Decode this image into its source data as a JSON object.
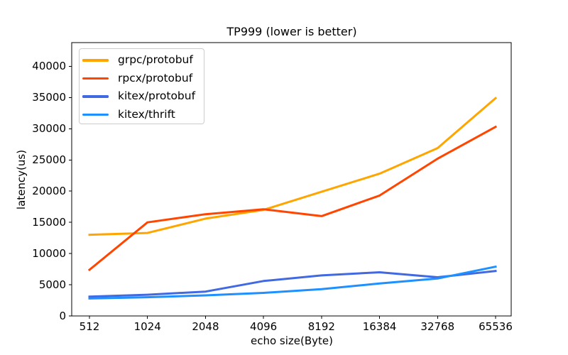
{
  "figure": {
    "background": "#ffffff",
    "axis_color": "#000000"
  },
  "chart_data": {
    "type": "line",
    "title": "TP999 (lower is better)",
    "xlabel": "echo size(Byte)",
    "ylabel": "latency(us)",
    "categories": [
      "512",
      "1024",
      "2048",
      "4096",
      "8192",
      "16384",
      "32768",
      "65536"
    ],
    "y_ticks": [
      0,
      5000,
      10000,
      15000,
      20000,
      25000,
      30000,
      35000,
      40000
    ],
    "ylim": [
      0,
      43800
    ],
    "grid": false,
    "legend_position": "upper left",
    "series": [
      {
        "name": "grpc/protobuf",
        "color": "#FFA500",
        "values": [
          13000,
          13300,
          15600,
          17000,
          19900,
          22800,
          26900,
          34900
        ]
      },
      {
        "name": "rpcx/protobuf",
        "color": "#FF4500",
        "values": [
          7400,
          15000,
          16300,
          17100,
          16000,
          19300,
          25200,
          30300
        ]
      },
      {
        "name": "kitex/protobuf",
        "color": "#4169E1",
        "values": [
          3100,
          3400,
          3900,
          5600,
          6500,
          7000,
          6200,
          7200
        ]
      },
      {
        "name": "kitex/thrift",
        "color": "#1E90FF",
        "values": [
          2800,
          3000,
          3300,
          3700,
          4300,
          5200,
          6000,
          7900
        ]
      }
    ]
  }
}
